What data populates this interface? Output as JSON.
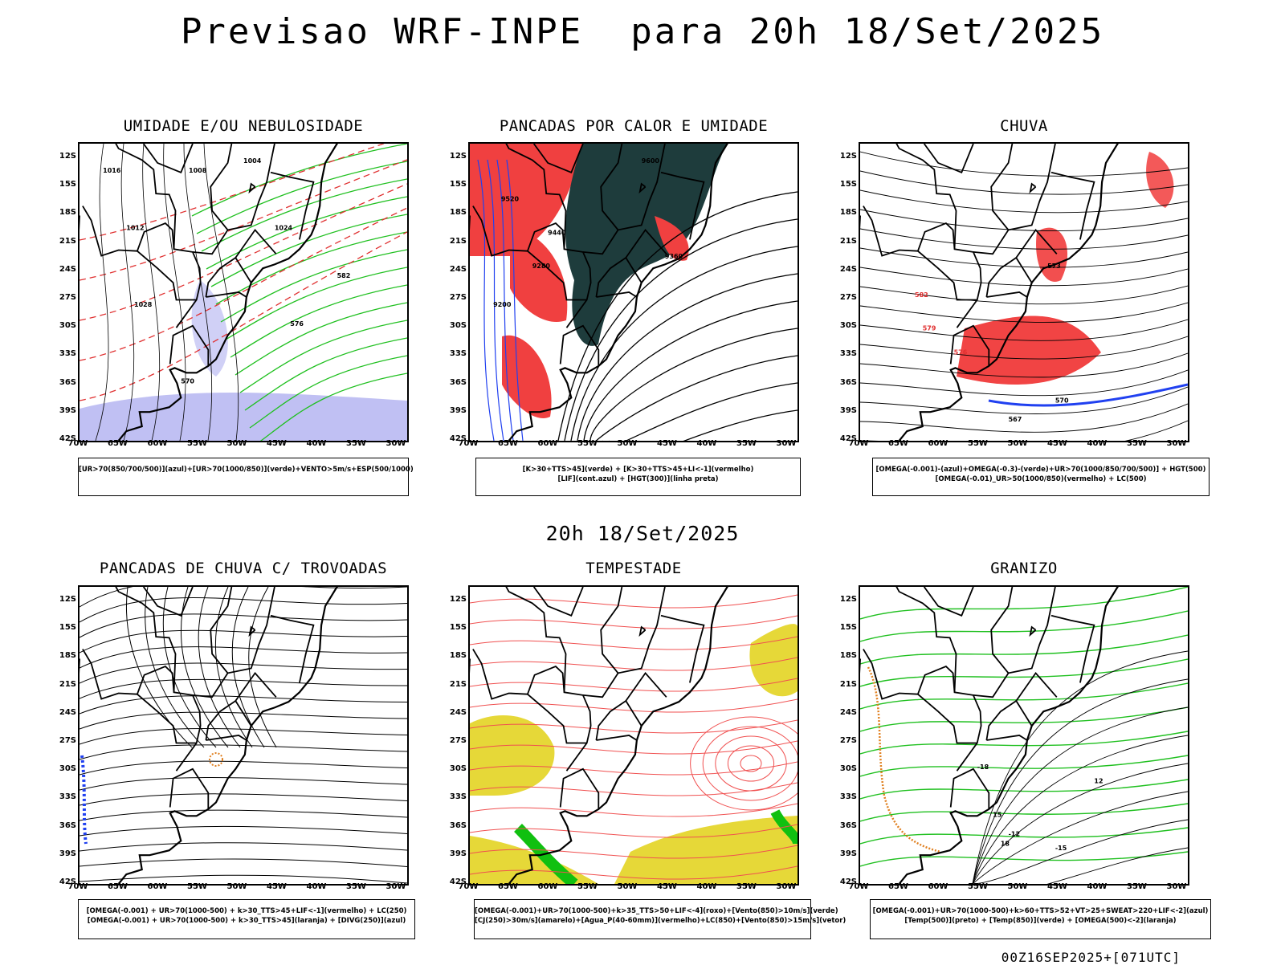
{
  "title": "Previsao WRF-INPE  para 20h 18/Set/2025",
  "subtitle": "20h 18/Set/2025",
  "footer": "00Z16SEP2025+[071UTC]",
  "lat_labels": [
    "12S",
    "15S",
    "18S",
    "21S",
    "24S",
    "27S",
    "30S",
    "33S",
    "36S",
    "39S",
    "42S"
  ],
  "lon_labels": [
    "70W",
    "65W",
    "60W",
    "55W",
    "50W",
    "45W",
    "40W",
    "35W",
    "30W"
  ],
  "panels": [
    {
      "title": "UMIDADE E/OU NEBULOSIDADE",
      "legend": [
        "[UR>70(850/700/500)](azul)+[UR>70(1000/850)](verde)+VENTO>5m/s+ESP(500/1000)"
      ],
      "contour_labels": [
        "1016",
        "1012",
        "1008",
        "1004",
        "1024",
        "1028",
        "570",
        "576",
        "582"
      ],
      "colors": {
        "fill": "#b0b0f0",
        "line1": "#20c020",
        "line2": "#e03030"
      }
    },
    {
      "title": "PANCADAS POR CALOR E UMIDADE",
      "legend": [
        "[K>30+TTS>45](verde) + [K>30+TTS>45+LI<-1](vermelho)",
        "[LIF](cont.azul) + [HGT(300)](linha preta)"
      ],
      "contour_labels": [
        "9600",
        "9520",
        "9440",
        "9360",
        "9280",
        "9200"
      ],
      "colors": {
        "fill": "#f04040",
        "fill2": "#1e3c3c",
        "line1": "#2040f0"
      }
    },
    {
      "title": "CHUVA",
      "legend": [
        "[OMEGA(-0.001)-(azul)+OMEGA(-0.3)-(verde)+UR>70(1000/850/700/500)] + HGT(500)",
        "[OMEGA(-0.01)_UR>50(1000/850)(vermelho) + LC(500)"
      ],
      "contour_labels": [
        "582",
        "579",
        "576",
        "573",
        "570",
        "567"
      ],
      "colors": {
        "fill": "#f03030",
        "line1": "#2040f0",
        "line2": "#20c020"
      }
    },
    {
      "title": "PANCADAS DE CHUVA C/ TROVOADAS",
      "legend": [
        "[OMEGA(-0.001) + UR>70(1000-500) + k>30_TTS>45+LIF<-1](vermelho) + LC(250)",
        "[OMEGA(-0.001) + UR>70(1000-500) + k>30_TTS>45](laranja) + [DIVG(250)](azul)"
      ],
      "contour_labels": [],
      "colors": {
        "fill": "#f03030",
        "line1": "#2040f0",
        "line2": "#e08020"
      }
    },
    {
      "title": "TEMPESTADE",
      "legend": [
        "[OMEGA(-0.001)+UR>70(1000-500)+k>35_TTS>50+LIF<-4](roxo)+[Vento(850)>10m/s](verde)",
        "[CJ(250)>30m/s](amarelo)+[Agua_P(40-60mm)](vermelho)+LC(850)+[Vento(850)>15m/s](vetor)"
      ],
      "contour_labels": [],
      "colors": {
        "fill": "#e6d838",
        "line1": "#f05050",
        "line2": "#10c010"
      }
    },
    {
      "title": "GRANIZO",
      "legend": [
        "[OMEGA(-0.001)+UR>70(1000-500)+k>60+TTS>52+VT>25+SWEAT>220+LIF<-2](azul)",
        "[Temp(500)](preto) + [Temp(850)](verde) + [OMEGA(500)<-2](laranja)"
      ],
      "contour_labels": [
        "12",
        "-12",
        "-15",
        "-18",
        "15",
        "18"
      ],
      "colors": {
        "line1": "#20c020",
        "line2": "#e08020"
      }
    }
  ]
}
